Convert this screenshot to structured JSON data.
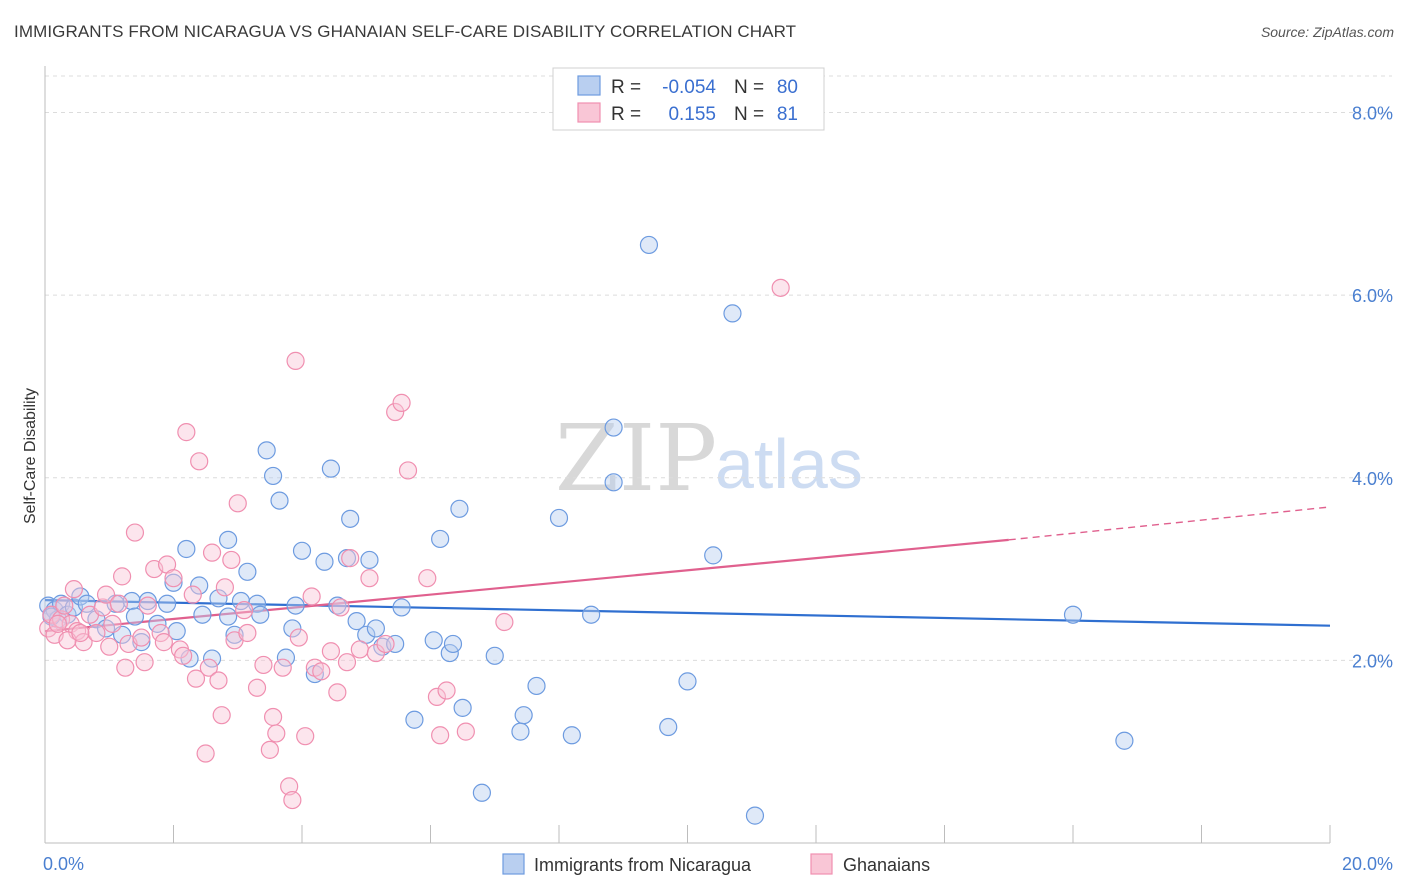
{
  "header": {
    "title": "IMMIGRANTS FROM NICARAGUA VS GHANAIAN SELF-CARE DISABILITY CORRELATION CHART",
    "source": "Source: ZipAtlas.com"
  },
  "watermark": {
    "zip": "ZIP",
    "atlas": "atlas"
  },
  "legend": {
    "rows": [
      {
        "r_label": "R =",
        "r_value": "-0.054",
        "n_label": "N =",
        "n_value": "80",
        "color": "#6d9be0"
      },
      {
        "r_label": "R =",
        "r_value": "0.155",
        "n_label": "N =",
        "n_value": "81",
        "color": "#f08fb0"
      }
    ]
  },
  "bottom_legend": [
    {
      "label": "Immigrants from Nicaragua",
      "color": "#6d9be0"
    },
    {
      "label": "Ghanaians",
      "color": "#f08fb0"
    }
  ],
  "chart_data": {
    "type": "scatter",
    "title": "IMMIGRANTS FROM NICARAGUA VS GHANAIAN SELF-CARE DISABILITY CORRELATION CHART",
    "ylabel": "Self-Care Disability",
    "xlabel": "",
    "xlim": [
      0,
      20
    ],
    "ylim": [
      0,
      8.4
    ],
    "x_tick_labels": [
      "0.0%",
      "20.0%"
    ],
    "y_tick_labels": [
      "2.0%",
      "4.0%",
      "6.0%",
      "8.0%"
    ],
    "y_ticks": [
      2,
      4,
      6,
      8
    ],
    "grid": "horizontal dashed",
    "series": [
      {
        "name": "Immigrants from Nicaragua",
        "color": "#6d9be0",
        "trend": {
          "x": [
            0,
            20
          ],
          "y": [
            2.66,
            2.38
          ]
        },
        "points": [
          [
            0.05,
            2.6
          ],
          [
            0.1,
            2.5
          ],
          [
            0.15,
            2.55
          ],
          [
            0.2,
            2.45
          ],
          [
            0.25,
            2.62
          ],
          [
            0.35,
            2.5
          ],
          [
            0.45,
            2.58
          ],
          [
            0.55,
            2.7
          ],
          [
            0.65,
            2.62
          ],
          [
            0.8,
            2.45
          ],
          [
            0.95,
            2.35
          ],
          [
            1.1,
            2.62
          ],
          [
            1.2,
            2.28
          ],
          [
            1.35,
            2.65
          ],
          [
            1.4,
            2.48
          ],
          [
            1.5,
            2.2
          ],
          [
            1.6,
            2.65
          ],
          [
            1.75,
            2.4
          ],
          [
            1.9,
            2.62
          ],
          [
            2.0,
            2.85
          ],
          [
            2.05,
            2.32
          ],
          [
            2.2,
            3.22
          ],
          [
            2.25,
            2.02
          ],
          [
            2.4,
            2.82
          ],
          [
            2.45,
            2.5
          ],
          [
            2.6,
            2.02
          ],
          [
            2.7,
            2.68
          ],
          [
            2.85,
            2.48
          ],
          [
            2.85,
            3.32
          ],
          [
            2.95,
            2.28
          ],
          [
            3.05,
            2.65
          ],
          [
            3.15,
            2.97
          ],
          [
            3.3,
            2.62
          ],
          [
            3.35,
            2.5
          ],
          [
            3.45,
            4.3
          ],
          [
            3.55,
            4.02
          ],
          [
            3.65,
            3.75
          ],
          [
            3.75,
            2.03
          ],
          [
            3.85,
            2.35
          ],
          [
            3.9,
            2.6
          ],
          [
            4.0,
            3.2
          ],
          [
            4.2,
            1.85
          ],
          [
            4.35,
            3.08
          ],
          [
            4.45,
            4.1
          ],
          [
            4.55,
            2.6
          ],
          [
            4.7,
            3.12
          ],
          [
            4.75,
            3.55
          ],
          [
            4.85,
            2.43
          ],
          [
            5.0,
            2.28
          ],
          [
            5.05,
            3.1
          ],
          [
            5.15,
            2.35
          ],
          [
            5.25,
            2.15
          ],
          [
            5.45,
            2.18
          ],
          [
            5.55,
            2.58
          ],
          [
            5.75,
            1.35
          ],
          [
            6.05,
            2.22
          ],
          [
            6.15,
            3.33
          ],
          [
            6.3,
            2.08
          ],
          [
            6.35,
            2.18
          ],
          [
            6.45,
            3.66
          ],
          [
            6.5,
            1.48
          ],
          [
            6.8,
            0.55
          ],
          [
            7.0,
            2.05
          ],
          [
            7.4,
            1.22
          ],
          [
            7.45,
            1.4
          ],
          [
            7.65,
            1.72
          ],
          [
            8.0,
            3.56
          ],
          [
            8.2,
            1.18
          ],
          [
            8.5,
            2.5
          ],
          [
            8.85,
            4.55
          ],
          [
            8.85,
            3.95
          ],
          [
            9.4,
            6.55
          ],
          [
            9.7,
            1.27
          ],
          [
            10.0,
            1.77
          ],
          [
            10.4,
            3.15
          ],
          [
            10.7,
            5.8
          ],
          [
            11.05,
            0.3
          ],
          [
            16.0,
            2.5
          ],
          [
            16.8,
            1.12
          ],
          [
            0.1,
            2.48
          ]
        ]
      },
      {
        "name": "Ghanaians",
        "color": "#f08fb0",
        "trend": {
          "x": [
            0,
            15
          ],
          "y": [
            2.32,
            3.32
          ]
        },
        "trend_dashed": {
          "x": [
            15,
            20
          ],
          "y": [
            3.32,
            3.68
          ]
        },
        "points": [
          [
            0.05,
            2.35
          ],
          [
            0.1,
            2.5
          ],
          [
            0.15,
            2.28
          ],
          [
            0.25,
            2.45
          ],
          [
            0.3,
            2.6
          ],
          [
            0.4,
            2.4
          ],
          [
            0.45,
            2.78
          ],
          [
            0.5,
            2.32
          ],
          [
            0.6,
            2.2
          ],
          [
            0.7,
            2.5
          ],
          [
            0.8,
            2.3
          ],
          [
            0.9,
            2.58
          ],
          [
            0.95,
            2.72
          ],
          [
            1.0,
            2.15
          ],
          [
            1.05,
            2.4
          ],
          [
            1.15,
            2.62
          ],
          [
            1.2,
            2.92
          ],
          [
            1.25,
            1.92
          ],
          [
            1.3,
            2.18
          ],
          [
            1.4,
            3.4
          ],
          [
            1.5,
            2.25
          ],
          [
            1.6,
            2.6
          ],
          [
            1.7,
            3.0
          ],
          [
            1.8,
            2.3
          ],
          [
            1.85,
            2.2
          ],
          [
            1.9,
            3.05
          ],
          [
            2.0,
            2.9
          ],
          [
            2.1,
            2.12
          ],
          [
            2.15,
            2.05
          ],
          [
            2.2,
            4.5
          ],
          [
            2.3,
            2.72
          ],
          [
            2.35,
            1.8
          ],
          [
            2.4,
            4.18
          ],
          [
            2.5,
            0.98
          ],
          [
            2.55,
            1.92
          ],
          [
            2.6,
            3.18
          ],
          [
            2.7,
            1.78
          ],
          [
            2.75,
            1.4
          ],
          [
            2.8,
            2.8
          ],
          [
            2.9,
            3.1
          ],
          [
            2.95,
            2.22
          ],
          [
            3.0,
            3.72
          ],
          [
            3.1,
            2.55
          ],
          [
            3.15,
            2.3
          ],
          [
            3.3,
            1.7
          ],
          [
            3.4,
            1.95
          ],
          [
            3.5,
            1.02
          ],
          [
            3.55,
            1.38
          ],
          [
            3.6,
            1.2
          ],
          [
            3.7,
            1.92
          ],
          [
            3.8,
            0.62
          ],
          [
            3.85,
            0.47
          ],
          [
            3.9,
            5.28
          ],
          [
            3.95,
            2.25
          ],
          [
            4.05,
            1.17
          ],
          [
            4.15,
            2.7
          ],
          [
            4.2,
            1.92
          ],
          [
            4.3,
            1.88
          ],
          [
            4.45,
            2.1
          ],
          [
            4.55,
            1.65
          ],
          [
            4.6,
            2.58
          ],
          [
            4.7,
            1.98
          ],
          [
            4.75,
            3.12
          ],
          [
            4.9,
            2.12
          ],
          [
            5.05,
            2.9
          ],
          [
            5.15,
            2.08
          ],
          [
            5.3,
            2.18
          ],
          [
            5.45,
            4.72
          ],
          [
            5.55,
            4.82
          ],
          [
            5.65,
            4.08
          ],
          [
            5.95,
            2.9
          ],
          [
            6.1,
            1.6
          ],
          [
            6.15,
            1.18
          ],
          [
            6.25,
            1.67
          ],
          [
            6.55,
            1.22
          ],
          [
            7.15,
            2.42
          ],
          [
            11.45,
            6.08
          ],
          [
            0.35,
            2.22
          ],
          [
            0.55,
            2.3
          ],
          [
            1.55,
            1.98
          ],
          [
            0.2,
            2.4
          ]
        ]
      }
    ]
  }
}
